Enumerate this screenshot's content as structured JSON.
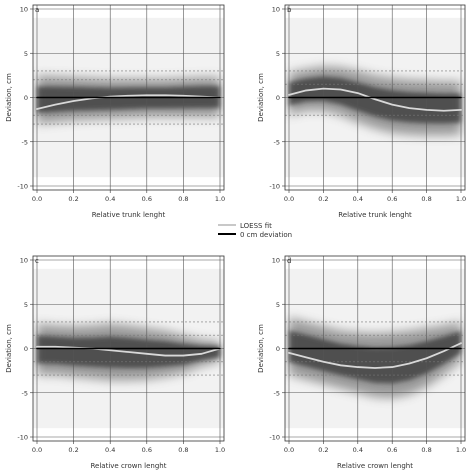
{
  "legend": {
    "items": [
      {
        "label": "LOESS fit",
        "color": "#c8c8c8"
      },
      {
        "label": "0 cm deviation",
        "color": "#000000"
      }
    ],
    "placement": "center, between top and bottom rows"
  },
  "chart_data": [
    {
      "panel_label": "a",
      "type": "line",
      "xlabel": "Relative trunk lenght",
      "ylabel": "Deviation, cm",
      "xlim": [
        0,
        1
      ],
      "ylim": [
        -10,
        10
      ],
      "x_ticks": [
        "0.0",
        "0.2",
        "0.4",
        "0.6",
        "0.8",
        "1.0"
      ],
      "y_ticks": [
        "10",
        "5",
        "0",
        "-5",
        "-10"
      ],
      "grid": true,
      "series": [
        {
          "name": "LOESS fit",
          "x": [
            0.0,
            0.1,
            0.2,
            0.3,
            0.4,
            0.5,
            0.6,
            0.7,
            0.8,
            0.9,
            1.0
          ],
          "y": [
            -1.3,
            -0.8,
            -0.4,
            -0.1,
            0.1,
            0.2,
            0.25,
            0.25,
            0.2,
            0.1,
            0.0
          ]
        },
        {
          "name": "0 cm deviation",
          "x": [
            0.0,
            1.0
          ],
          "y": [
            0,
            0
          ]
        }
      ],
      "band": {
        "x": [
          0.0,
          0.1,
          0.2,
          0.3,
          0.4,
          0.5,
          0.6,
          0.7,
          0.8,
          0.9,
          1.0
        ],
        "lower": [
          -3.0,
          -2.8,
          -2.6,
          -2.5,
          -2.4,
          -2.3,
          -2.2,
          -2.2,
          -2.2,
          -2.2,
          -2.2
        ],
        "upper": [
          2.5,
          2.4,
          2.3,
          2.2,
          2.1,
          2.1,
          2.1,
          2.1,
          2.2,
          2.3,
          2.3
        ]
      },
      "dashed_levels": [
        3.0,
        2.0,
        -2.0,
        -3.0
      ]
    },
    {
      "panel_label": "b",
      "type": "line",
      "xlabel": "Relative trunk lenght",
      "ylabel": "Deviation, cm",
      "xlim": [
        0,
        1
      ],
      "ylim": [
        -10,
        10
      ],
      "x_ticks": [
        "0.0",
        "0.2",
        "0.4",
        "0.6",
        "0.8",
        "1.0"
      ],
      "y_ticks": [
        "10",
        "5",
        "0",
        "-5",
        "-10"
      ],
      "grid": true,
      "series": [
        {
          "name": "LOESS fit",
          "x": [
            0.0,
            0.1,
            0.2,
            0.3,
            0.4,
            0.5,
            0.6,
            0.7,
            0.8,
            0.9,
            1.0
          ],
          "y": [
            0.3,
            0.8,
            1.0,
            0.9,
            0.5,
            -0.2,
            -0.8,
            -1.2,
            -1.4,
            -1.5,
            -1.4
          ]
        },
        {
          "name": "0 cm deviation",
          "x": [
            0.0,
            1.0
          ],
          "y": [
            0,
            0
          ]
        }
      ],
      "band": {
        "x": [
          0.0,
          0.1,
          0.2,
          0.3,
          0.4,
          0.5,
          0.6,
          0.7,
          0.8,
          0.9,
          1.0
        ],
        "lower": [
          -2.0,
          -1.5,
          -1.5,
          -2.0,
          -2.8,
          -3.5,
          -4.0,
          -4.2,
          -4.3,
          -4.3,
          -4.2
        ],
        "upper": [
          2.8,
          3.2,
          3.5,
          3.4,
          3.0,
          2.5,
          2.2,
          2.0,
          1.9,
          1.8,
          1.8
        ]
      },
      "dashed_levels": [
        3.0,
        1.5,
        -2.0
      ]
    },
    {
      "panel_label": "c",
      "type": "line",
      "xlabel": "Relative crown lenght",
      "ylabel": "Deviation, cm",
      "xlim": [
        0,
        1
      ],
      "ylim": [
        -10,
        10
      ],
      "x_ticks": [
        "0.0",
        "0.2",
        "0.4",
        "0.6",
        "0.8",
        "1.0"
      ],
      "y_ticks": [
        "10",
        "5",
        "0",
        "-5",
        "-10"
      ],
      "grid": true,
      "series": [
        {
          "name": "LOESS fit",
          "x": [
            0.0,
            0.1,
            0.2,
            0.3,
            0.4,
            0.5,
            0.6,
            0.7,
            0.8,
            0.9,
            1.0
          ],
          "y": [
            0.2,
            0.2,
            0.1,
            0.0,
            -0.2,
            -0.4,
            -0.6,
            -0.8,
            -0.8,
            -0.6,
            0.0
          ]
        },
        {
          "name": "0 cm deviation",
          "x": [
            0.0,
            1.0
          ],
          "y": [
            0,
            0
          ]
        }
      ],
      "band": {
        "x": [
          0.0,
          0.1,
          0.2,
          0.3,
          0.4,
          0.5,
          0.6,
          0.7,
          0.8,
          0.9,
          1.0
        ],
        "lower": [
          -3.0,
          -3.0,
          -3.2,
          -3.4,
          -3.6,
          -3.6,
          -3.5,
          -3.2,
          -2.8,
          -2.0,
          -1.5
        ],
        "upper": [
          2.8,
          2.6,
          2.5,
          2.6,
          2.8,
          2.6,
          2.3,
          2.0,
          1.5,
          1.0,
          0.8
        ]
      },
      "dashed_levels": [
        3.0,
        1.5,
        -1.5,
        -3.0
      ]
    },
    {
      "panel_label": "d",
      "type": "line",
      "xlabel": "Relative crown lenght",
      "ylabel": "Deviation, cm",
      "xlim": [
        0,
        1
      ],
      "ylim": [
        -10,
        10
      ],
      "x_ticks": [
        "0.0",
        "0.2",
        "0.4",
        "0.6",
        "0.8",
        "1.0"
      ],
      "y_ticks": [
        "10",
        "5",
        "0",
        "-5",
        "-10"
      ],
      "grid": true,
      "series": [
        {
          "name": "LOESS fit",
          "x": [
            0.0,
            0.1,
            0.2,
            0.3,
            0.4,
            0.5,
            0.6,
            0.7,
            0.8,
            0.9,
            1.0
          ],
          "y": [
            -0.5,
            -1.0,
            -1.5,
            -1.9,
            -2.1,
            -2.2,
            -2.1,
            -1.7,
            -1.1,
            -0.3,
            0.6
          ]
        },
        {
          "name": "0 cm deviation",
          "x": [
            0.0,
            1.0
          ],
          "y": [
            0,
            0
          ]
        }
      ],
      "band": {
        "x": [
          0.0,
          0.1,
          0.2,
          0.3,
          0.4,
          0.5,
          0.6,
          0.7,
          0.8,
          0.9,
          1.0
        ],
        "lower": [
          -3.0,
          -3.5,
          -4.0,
          -4.5,
          -5.0,
          -5.5,
          -5.6,
          -5.2,
          -4.3,
          -3.0,
          -1.5
        ],
        "upper": [
          3.5,
          3.0,
          2.5,
          2.0,
          1.8,
          1.7,
          1.8,
          2.0,
          2.3,
          2.6,
          3.0
        ]
      },
      "dashed_levels": [
        3.0,
        1.5,
        -1.5,
        -3.0
      ]
    }
  ]
}
